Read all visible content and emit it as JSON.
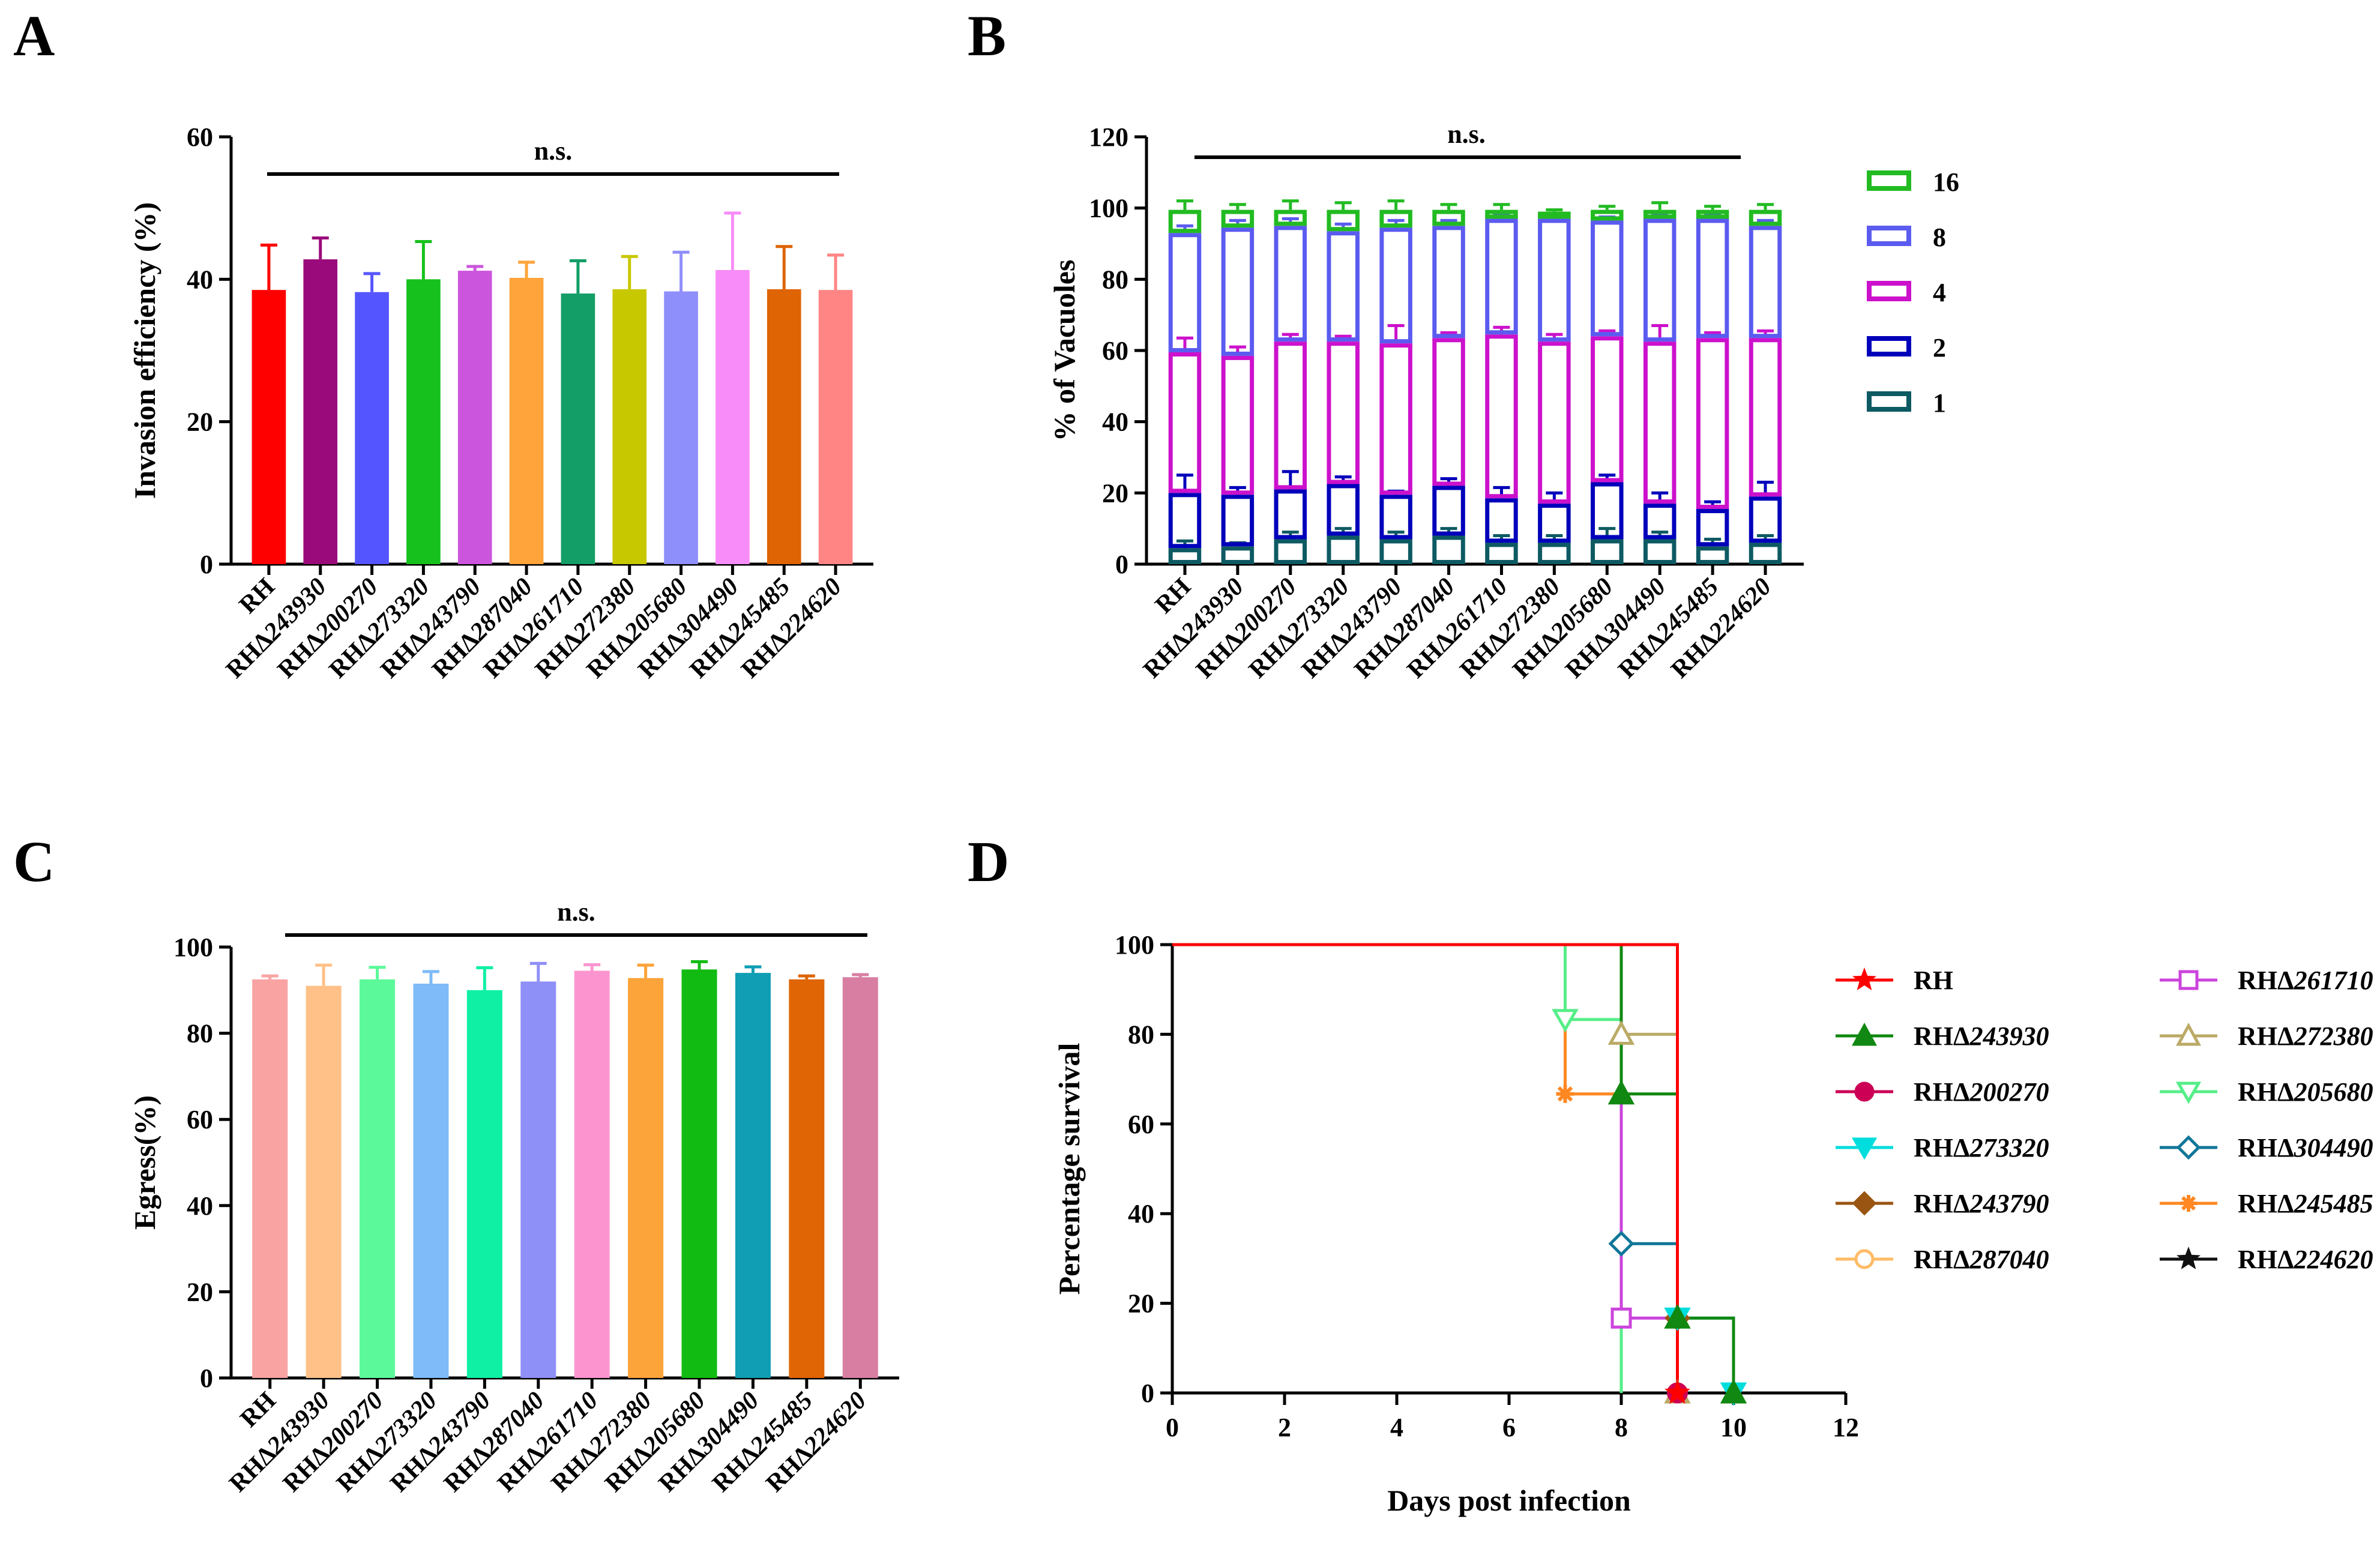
{
  "chart_data": [
    {
      "panel": "A",
      "type": "bar",
      "ylabel": "Invasion efficiency (%)",
      "ylim": [
        0,
        60
      ],
      "yticks": [
        "0",
        "20",
        "40",
        "60"
      ],
      "annotation": "n.s.",
      "categories": [
        {
          "pre": "RH",
          "num": ""
        },
        {
          "pre": "RHΔ",
          "num": "243930"
        },
        {
          "pre": "RHΔ",
          "num": "200270"
        },
        {
          "pre": "RHΔ",
          "num": "273320"
        },
        {
          "pre": "RHΔ",
          "num": "243790"
        },
        {
          "pre": "RHΔ",
          "num": "287040"
        },
        {
          "pre": "RHΔ",
          "num": "261710"
        },
        {
          "pre": "RHΔ",
          "num": "272380"
        },
        {
          "pre": "RHΔ",
          "num": "205680"
        },
        {
          "pre": "RHΔ",
          "num": "304490"
        },
        {
          "pre": "RHΔ",
          "num": "245485"
        },
        {
          "pre": "RHΔ",
          "num": "224620"
        }
      ],
      "values": [
        38.5,
        42.8,
        38.2,
        40.0,
        41.2,
        40.2,
        38.0,
        38.6,
        38.3,
        41.3,
        38.6,
        38.5
      ],
      "errors": [
        6.3,
        3.0,
        2.6,
        5.3,
        0.6,
        2.2,
        4.6,
        4.6,
        5.5,
        8.0,
        6.0,
        4.9
      ],
      "colors": [
        "#ff0000",
        "#9b0a7a",
        "#5555ff",
        "#16c11d",
        "#cc55dd",
        "#ffa43a",
        "#129e66",
        "#c8c800",
        "#8f8ffb",
        "#f88cf8",
        "#de6404",
        "#ff8585"
      ]
    },
    {
      "panel": "B",
      "type": "bar",
      "stacked": true,
      "ylabel": "% of Vacuoles",
      "ylim": [
        0,
        120
      ],
      "yticks": [
        "0",
        "20",
        "40",
        "60",
        "80",
        "100",
        "120"
      ],
      "annotation": "n.s.",
      "categories": [
        {
          "pre": "RH",
          "num": ""
        },
        {
          "pre": "RHΔ",
          "num": "243930"
        },
        {
          "pre": "RHΔ",
          "num": "200270"
        },
        {
          "pre": "RHΔ",
          "num": "273320"
        },
        {
          "pre": "RHΔ",
          "num": "243790"
        },
        {
          "pre": "RHΔ",
          "num": "287040"
        },
        {
          "pre": "RHΔ",
          "num": "261710"
        },
        {
          "pre": "RHΔ",
          "num": "272380"
        },
        {
          "pre": "RHΔ",
          "num": "205680"
        },
        {
          "pre": "RHΔ",
          "num": "304490"
        },
        {
          "pre": "RHΔ",
          "num": "245485"
        },
        {
          "pre": "RHΔ",
          "num": "224620"
        }
      ],
      "series": [
        {
          "name": "1",
          "color": "#0d5a63",
          "tops": [
            4.5,
            5,
            7,
            8,
            7,
            8,
            6,
            6,
            7,
            7,
            5,
            6
          ],
          "errors": [
            2,
            1,
            2,
            2,
            2,
            2,
            2,
            2,
            3,
            2,
            2,
            2
          ]
        },
        {
          "name": "2",
          "color": "#0000bb",
          "tops": [
            20,
            19.5,
            21,
            22.5,
            19.5,
            22,
            18.5,
            17,
            23,
            17,
            15.5,
            19
          ],
          "errors": [
            5,
            2,
            5,
            2,
            1,
            2,
            3,
            3,
            2,
            3,
            2,
            4
          ]
        },
        {
          "name": "4",
          "color": "#cc11cc",
          "tops": [
            59.5,
            58.5,
            62.5,
            62.5,
            62,
            63.5,
            64.5,
            62.5,
            64,
            62.5,
            63.5,
            63.5
          ],
          "errors": [
            4,
            2.5,
            2,
            1.5,
            5,
            1.5,
            2,
            2,
            1.5,
            4.5,
            1.5,
            2
          ]
        },
        {
          "name": "8",
          "color": "#5b5bf0",
          "tops": [
            93,
            94.5,
            95,
            93.5,
            94.5,
            95,
            97,
            97,
            96.5,
            97,
            97,
            95
          ],
          "errors": [
            2,
            2,
            2,
            2,
            2,
            1.5,
            1.5,
            1,
            1,
            1.5,
            1.5,
            1.5
          ]
        },
        {
          "name": "16",
          "color": "#22bb22",
          "tops": [
            99.5,
            99.5,
            99.5,
            99.5,
            99.5,
            99.5,
            99.5,
            99,
            99.5,
            99.5,
            99.5,
            99.5
          ],
          "errors": [
            2.5,
            1.5,
            2.5,
            2,
            2.5,
            1.5,
            1.5,
            0.5,
            1,
            2,
            1,
            1.5
          ]
        }
      ],
      "legend_order": [
        "16",
        "8",
        "4",
        "2",
        "1"
      ]
    },
    {
      "panel": "C",
      "type": "bar",
      "ylabel": "Egress(%)",
      "ylim": [
        0,
        100
      ],
      "yticks": [
        "0",
        "20",
        "40",
        "60",
        "80",
        "100"
      ],
      "annotation": "n.s.",
      "categories": [
        {
          "pre": "RH",
          "num": ""
        },
        {
          "pre": "RHΔ",
          "num": "243930"
        },
        {
          "pre": "RHΔ",
          "num": "200270"
        },
        {
          "pre": "RHΔ",
          "num": "273320"
        },
        {
          "pre": "RHΔ",
          "num": "243790"
        },
        {
          "pre": "RHΔ",
          "num": "287040"
        },
        {
          "pre": "RHΔ",
          "num": "261710"
        },
        {
          "pre": "RHΔ",
          "num": "272380"
        },
        {
          "pre": "RHΔ",
          "num": "205680"
        },
        {
          "pre": "RHΔ",
          "num": "304490"
        },
        {
          "pre": "RHΔ",
          "num": "245485"
        },
        {
          "pre": "RHΔ",
          "num": "224620"
        }
      ],
      "values": [
        92.5,
        91.0,
        92.5,
        91.5,
        90.0,
        92.0,
        94.5,
        92.8,
        94.8,
        94.0,
        92.5,
        93.0
      ],
      "errors": [
        0.8,
        4.8,
        2.8,
        2.8,
        5.2,
        4.2,
        1.4,
        3.0,
        1.8,
        1.4,
        0.8,
        0.6
      ],
      "colors": [
        "#f9a3a3",
        "#ffc187",
        "#5cf99a",
        "#7ebbf8",
        "#0ff0a5",
        "#8f8ff8",
        "#fc95cf",
        "#fca33a",
        "#11bb11",
        "#0f9eb4",
        "#e06505",
        "#d87ea2"
      ]
    },
    {
      "panel": "D",
      "type": "line",
      "step": true,
      "xlabel": "Days post infection",
      "ylabel": "Percentage survival",
      "xlim": [
        0,
        12
      ],
      "ylim": [
        0,
        100
      ],
      "xticks": [
        "0",
        "2",
        "4",
        "6",
        "8",
        "10",
        "12"
      ],
      "yticks": [
        "0",
        "20",
        "40",
        "60",
        "80",
        "100"
      ],
      "series": [
        {
          "pre": "RH",
          "num": "",
          "color": "#ff0000",
          "marker": "star",
          "x": [
            0,
            9,
            9
          ],
          "y": [
            100,
            100,
            0
          ],
          "marker_x": [
            9
          ],
          "marker_y": [
            0
          ]
        },
        {
          "pre": "RHΔ",
          "num": "243930",
          "color": "#118811",
          "marker": "triangle",
          "x": [
            0,
            8,
            8,
            9,
            9,
            10,
            10
          ],
          "y": [
            100,
            100,
            66.7,
            66.7,
            16.7,
            16.7,
            0
          ],
          "marker_x": [
            8,
            9,
            10
          ],
          "marker_y": [
            66.7,
            16.7,
            0
          ]
        },
        {
          "pre": "RHΔ",
          "num": "200270",
          "color": "#cc0055",
          "marker": "circle",
          "x": [
            0,
            9,
            9
          ],
          "y": [
            100,
            100,
            0
          ],
          "marker_x": [
            9
          ],
          "marker_y": [
            0
          ]
        },
        {
          "pre": "RHΔ",
          "num": "273320",
          "color": "#00dddd",
          "marker": "triangle-down",
          "x": [
            0,
            9,
            9,
            10,
            10
          ],
          "y": [
            100,
            100,
            16.7,
            16.7,
            0
          ],
          "marker_x": [
            9,
            10
          ],
          "marker_y": [
            16.7,
            0
          ]
        },
        {
          "pre": "RHΔ",
          "num": "243790",
          "color": "#995511",
          "marker": "diamond",
          "x": [
            0,
            9,
            9
          ],
          "y": [
            100,
            100,
            16.7
          ],
          "marker_x": [
            9
          ],
          "marker_y": [
            16.7
          ]
        },
        {
          "pre": "RHΔ",
          "num": "287040",
          "color": "#ffbb66",
          "marker": "circle-open",
          "x": [
            0,
            9,
            9
          ],
          "y": [
            100,
            100,
            0
          ],
          "marker_x": [
            9
          ],
          "marker_y": [
            0
          ]
        },
        {
          "pre": "RHΔ",
          "num": "261710",
          "color": "#cc44dd",
          "marker": "square-open",
          "x": [
            0,
            8,
            8,
            9,
            9
          ],
          "y": [
            100,
            100,
            16.7,
            16.7,
            0
          ],
          "marker_x": [
            8
          ],
          "marker_y": [
            16.7
          ]
        },
        {
          "pre": "RHΔ",
          "num": "272380",
          "color": "#bbaa66",
          "marker": "triangle-open",
          "x": [
            0,
            8,
            8,
            9,
            9
          ],
          "y": [
            100,
            100,
            80,
            80,
            0
          ],
          "marker_x": [
            8,
            9
          ],
          "marker_y": [
            80,
            0
          ]
        },
        {
          "pre": "RHΔ",
          "num": "205680",
          "color": "#55ee88",
          "marker": "triangle-down-open",
          "x": [
            0,
            7,
            7,
            8,
            8
          ],
          "y": [
            100,
            100,
            83.3,
            83.3,
            0
          ],
          "marker_x": [
            7
          ],
          "marker_y": [
            83.3
          ]
        },
        {
          "pre": "RHΔ",
          "num": "304490",
          "color": "#117799",
          "marker": "diamond-open",
          "x": [
            0,
            8,
            8,
            9,
            9
          ],
          "y": [
            100,
            100,
            33.3,
            33.3,
            0
          ],
          "marker_x": [
            8
          ],
          "marker_y": [
            33.3
          ]
        },
        {
          "pre": "RHΔ",
          "num": "245485",
          "color": "#ff8822",
          "marker": "asterisk",
          "x": [
            0,
            7,
            7,
            8,
            8
          ],
          "y": [
            100,
            100,
            66.7,
            66.7,
            0
          ],
          "marker_x": [
            7
          ],
          "marker_y": [
            66.7
          ]
        },
        {
          "pre": "RHΔ",
          "num": "224620",
          "color": "#111111",
          "marker": "star",
          "x": [
            0,
            9,
            9
          ],
          "y": [
            100,
            100,
            0
          ],
          "marker_x": [
            9
          ],
          "marker_y": [
            0
          ]
        }
      ]
    }
  ]
}
